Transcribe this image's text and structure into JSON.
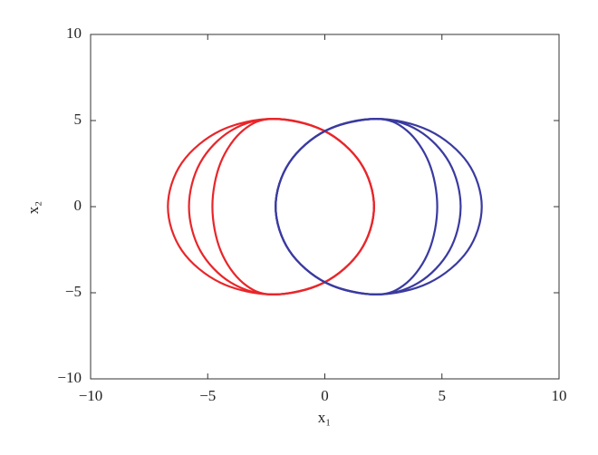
{
  "chart_data": {
    "type": "line",
    "xlabel": "x₁",
    "ylabel": "x₂",
    "xlim": [
      -10,
      10
    ],
    "ylim": [
      -10,
      10
    ],
    "xticks": [
      {
        "value": -10,
        "label": "−10"
      },
      {
        "value": -5,
        "label": "−5"
      },
      0,
      5,
      10
    ],
    "yticks": [
      {
        "value": -10,
        "label": "−10"
      },
      {
        "value": -5,
        "label": "−5"
      },
      0,
      5,
      10
    ],
    "series": [
      {
        "color": "#e8262a",
        "x": [
          2.1,
          1.52,
          -0.05,
          -2.2,
          -4.45,
          -6.1,
          -6.7,
          -6.1,
          -4.45,
          -2.2,
          -0.05,
          1.52,
          2.1
        ],
        "y": [
          0,
          2.55,
          4.42,
          5.1,
          4.42,
          2.55,
          0,
          -2.55,
          -4.42,
          -5.1,
          -4.42,
          -2.55,
          0
        ]
      },
      {
        "color": "#e8262a",
        "x": [
          2.1,
          1.52,
          -0.05,
          -2.2,
          -4.0,
          -5.32,
          -5.8,
          -5.32,
          -4.0,
          -2.2,
          -0.05,
          1.52,
          2.1
        ],
        "y": [
          0,
          2.55,
          4.42,
          5.1,
          4.42,
          2.55,
          0,
          -2.55,
          -4.42,
          -5.1,
          -4.42,
          -2.55,
          0
        ]
      },
      {
        "color": "#e8262a",
        "x": [
          2.1,
          1.52,
          -0.05,
          -2.2,
          -3.5,
          -4.45,
          -4.8,
          -4.45,
          -3.5,
          -2.2,
          -0.05,
          1.52,
          2.1
        ],
        "y": [
          0,
          2.55,
          4.42,
          5.1,
          4.42,
          2.55,
          0,
          -2.55,
          -4.42,
          -5.1,
          -4.42,
          -2.55,
          0
        ]
      },
      {
        "color": "#3a3aa0",
        "x": [
          -2.1,
          -1.52,
          0.05,
          2.2,
          4.45,
          6.1,
          6.7,
          6.1,
          4.45,
          2.2,
          0.05,
          -1.52,
          -2.1
        ],
        "y": [
          0,
          2.55,
          4.42,
          5.1,
          4.42,
          2.55,
          0,
          -2.55,
          -4.42,
          -5.1,
          -4.42,
          -2.55,
          0
        ]
      },
      {
        "color": "#3a3aa0",
        "x": [
          -2.1,
          -1.52,
          0.05,
          2.2,
          4.0,
          5.32,
          5.8,
          5.32,
          4.0,
          2.2,
          0.05,
          -1.52,
          -2.1
        ],
        "y": [
          0,
          2.55,
          4.42,
          5.1,
          4.42,
          2.55,
          0,
          -2.55,
          -4.42,
          -5.1,
          -4.42,
          -2.55,
          0
        ]
      },
      {
        "color": "#3a3aa0",
        "x": [
          -2.1,
          -1.52,
          0.05,
          2.2,
          3.5,
          4.45,
          4.8,
          4.45,
          3.5,
          2.2,
          0.05,
          -1.52,
          -2.1
        ],
        "y": [
          0,
          2.55,
          4.42,
          5.1,
          4.42,
          2.55,
          0,
          -2.55,
          -4.42,
          -5.1,
          -4.42,
          -2.55,
          0
        ]
      }
    ]
  }
}
